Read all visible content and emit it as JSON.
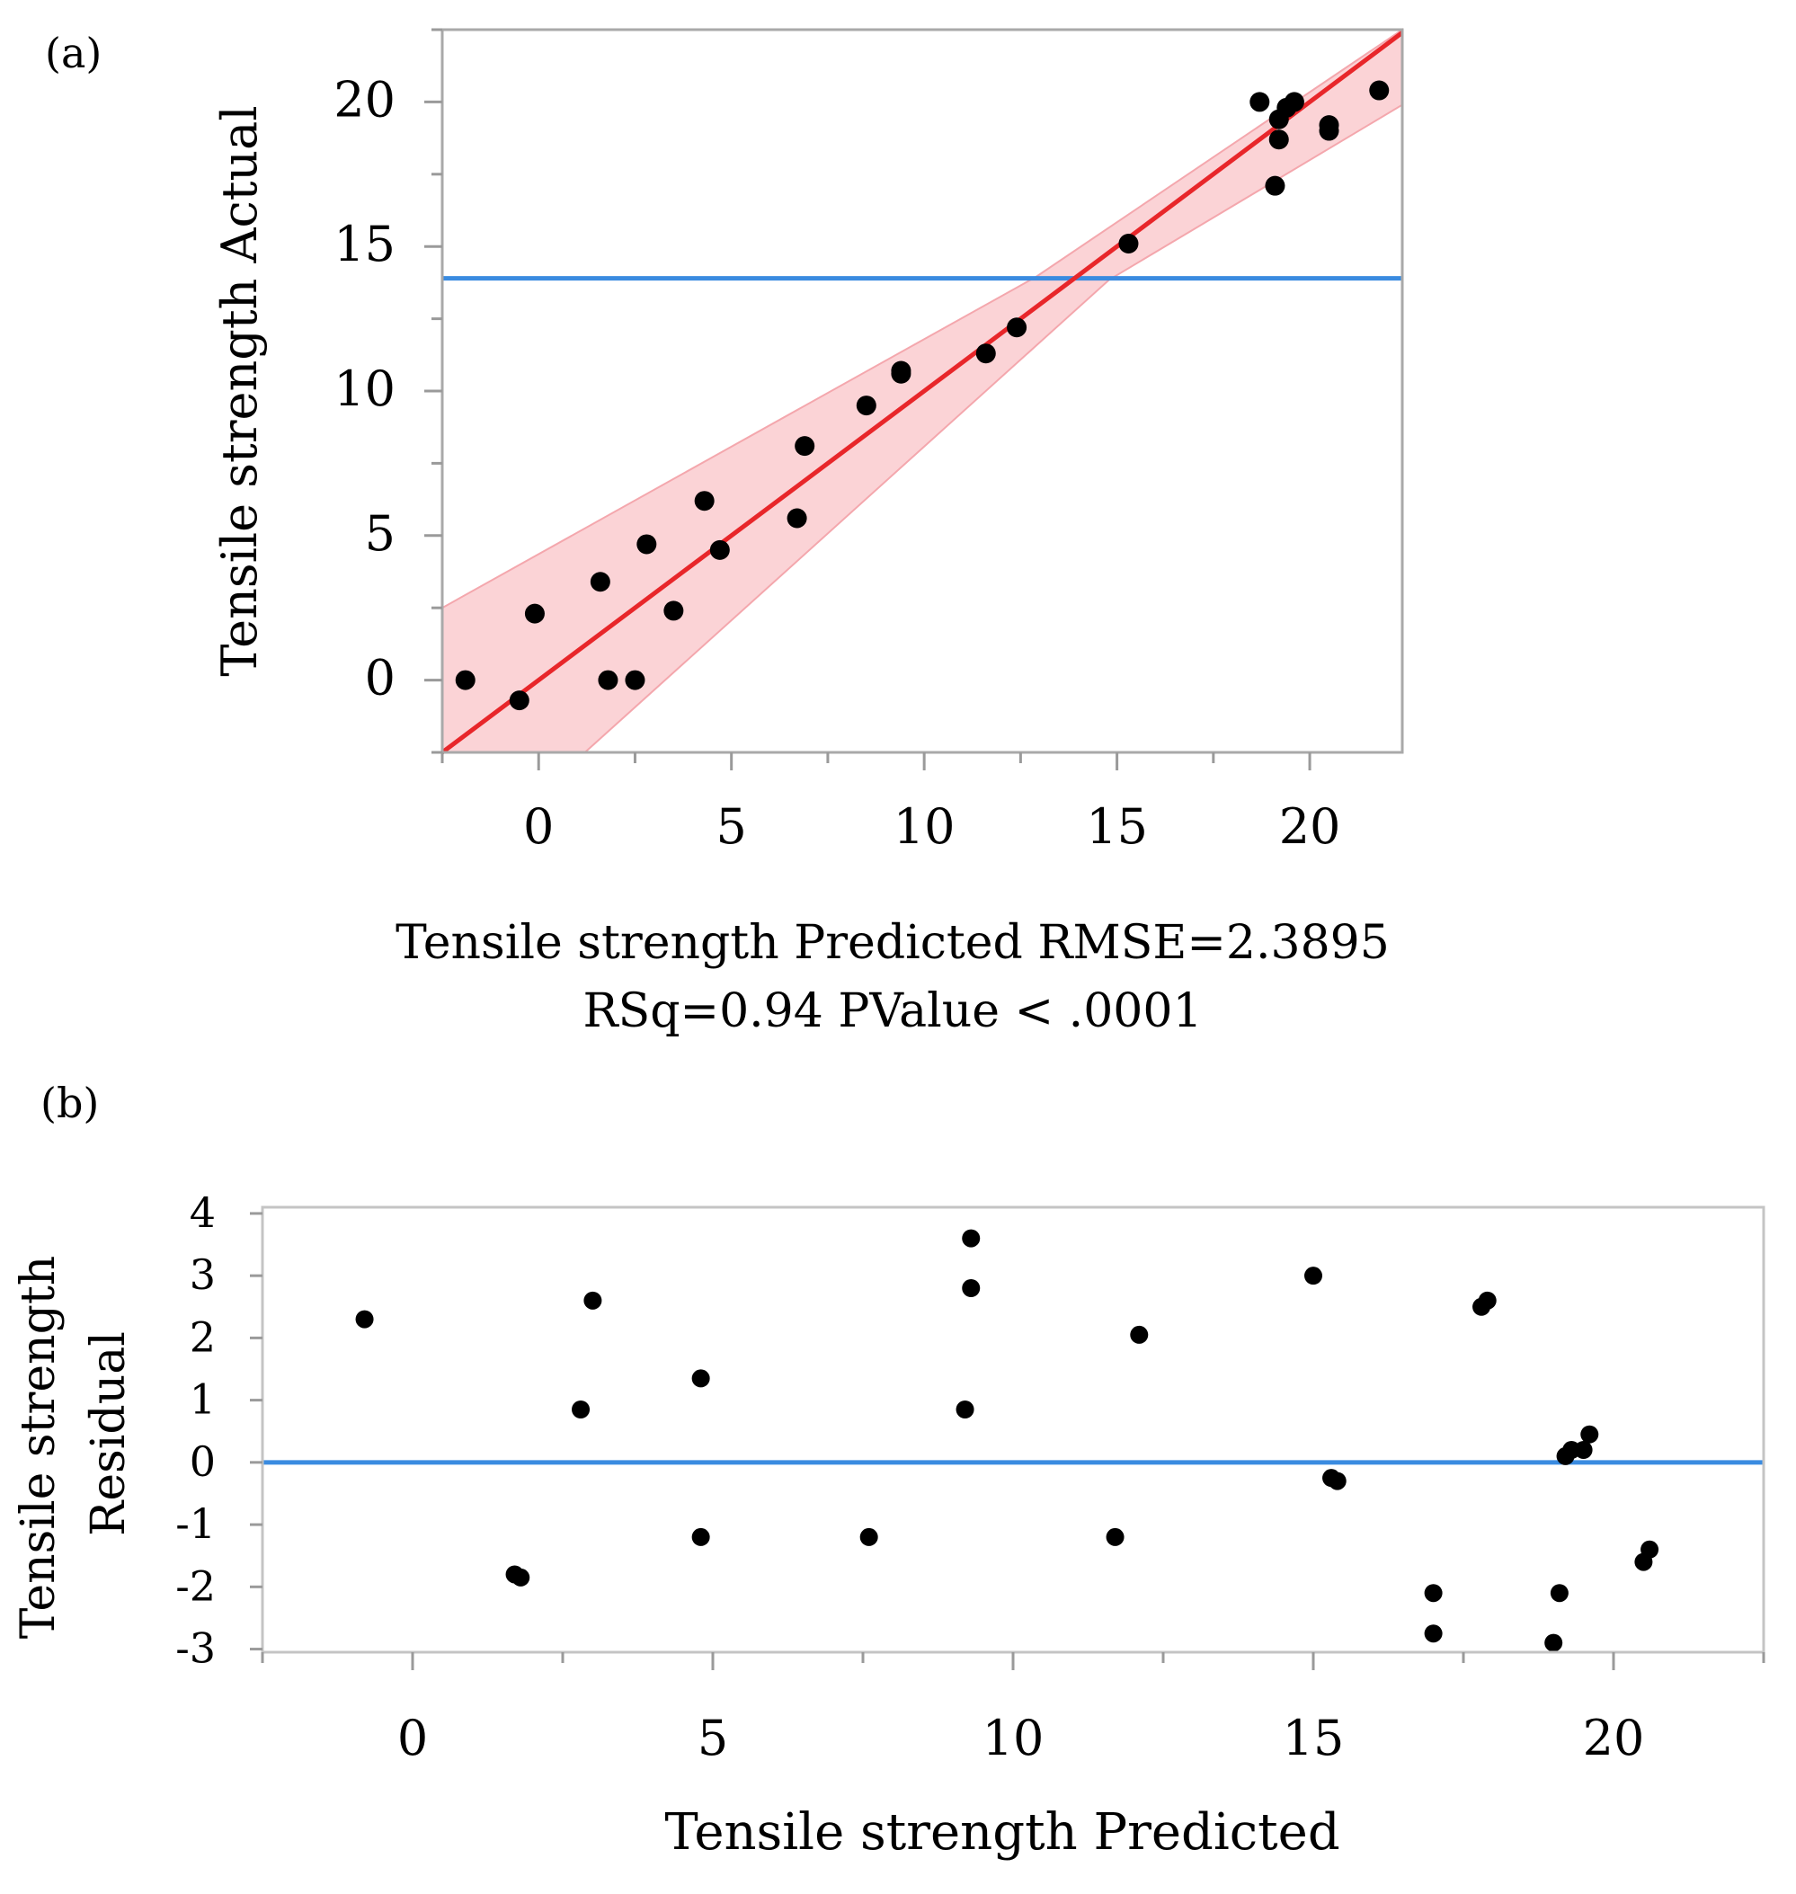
{
  "chart_data": [
    {
      "panel_label": "(a)",
      "type": "scatter",
      "xlabel": "Tensile strength Predicted RMSE=2.3895",
      "xlabel_line2": "RSq=0.94 PValue < .0001",
      "ylabel": "Tensile strength Actual",
      "xlim": [
        -2.5,
        22.4
      ],
      "ylim": [
        -2.5,
        22.5
      ],
      "x_ticks": [
        "0",
        "5",
        "10",
        "15",
        "20"
      ],
      "y_ticks": [
        "0",
        "5",
        "10",
        "15",
        "20"
      ],
      "mean_line": 13.9,
      "fit_line": [
        [
          -2.5,
          -2.5
        ],
        [
          22.4,
          22.4
        ]
      ],
      "confidence_band": {
        "upper": [
          [
            -2.5,
            2.5
          ],
          [
            12.9,
            13.95
          ],
          [
            22.4,
            22.5
          ]
        ],
        "lower": [
          [
            22.4,
            19.9
          ],
          [
            14.8,
            13.85
          ],
          [
            1.2,
            -2.5
          ],
          [
            -2.5,
            -2.5
          ]
        ]
      },
      "colors": {
        "fit": "#e8262a",
        "band": "#fbd3d6",
        "mean": "#3a8be0",
        "points": "#000000",
        "axis": "#9a9a9a"
      },
      "points": [
        [
          -1.9,
          0.0
        ],
        [
          -0.5,
          -0.7
        ],
        [
          -0.1,
          2.3
        ],
        [
          1.6,
          3.4
        ],
        [
          1.8,
          0.0
        ],
        [
          2.5,
          0.0
        ],
        [
          2.8,
          4.7
        ],
        [
          3.5,
          2.4
        ],
        [
          4.3,
          6.2
        ],
        [
          4.7,
          4.5
        ],
        [
          6.7,
          5.6
        ],
        [
          6.9,
          8.1
        ],
        [
          8.5,
          9.5
        ],
        [
          9.4,
          10.7
        ],
        [
          9.4,
          10.6
        ],
        [
          11.6,
          11.3
        ],
        [
          12.4,
          12.2
        ],
        [
          15.3,
          15.1
        ],
        [
          18.7,
          20.0
        ],
        [
          19.1,
          17.1
        ],
        [
          19.2,
          18.7
        ],
        [
          19.2,
          19.4
        ],
        [
          19.4,
          19.8
        ],
        [
          19.6,
          20.0
        ],
        [
          20.5,
          19.0
        ],
        [
          20.5,
          19.2
        ],
        [
          21.8,
          20.4
        ]
      ]
    },
    {
      "panel_label": "(b)",
      "type": "scatter",
      "xlabel": "Tensile strength Predicted",
      "ylabel": "Tensile strength",
      "ylabel_line2": "Residual",
      "xlim": [
        -2.5,
        22.5
      ],
      "ylim": [
        -3.05,
        4.1
      ],
      "x_ticks": [
        "0",
        "5",
        "10",
        "15",
        "20"
      ],
      "y_ticks": [
        "-3",
        "-2",
        "-1",
        "0",
        "1",
        "2",
        "3",
        "4"
      ],
      "zero_line": 0,
      "colors": {
        "zero": "#3a8be0",
        "points": "#000000",
        "axis": "#9a9a9a"
      },
      "points": [
        [
          -0.8,
          2.3
        ],
        [
          1.7,
          -1.8
        ],
        [
          1.8,
          -1.85
        ],
        [
          2.8,
          0.85
        ],
        [
          3.0,
          2.6
        ],
        [
          4.8,
          1.35
        ],
        [
          4.8,
          -1.2
        ],
        [
          7.6,
          -1.2
        ],
        [
          9.2,
          0.85
        ],
        [
          9.3,
          3.6
        ],
        [
          9.3,
          2.8
        ],
        [
          11.7,
          -1.2
        ],
        [
          12.1,
          2.05
        ],
        [
          15.0,
          3.0
        ],
        [
          15.3,
          -0.25
        ],
        [
          15.4,
          -0.3
        ],
        [
          17.0,
          -2.1
        ],
        [
          17.0,
          -2.75
        ],
        [
          17.8,
          2.5
        ],
        [
          17.9,
          2.6
        ],
        [
          19.0,
          -2.9
        ],
        [
          19.1,
          -2.1
        ],
        [
          19.2,
          0.1
        ],
        [
          19.3,
          0.2
        ],
        [
          19.5,
          0.2
        ],
        [
          19.6,
          0.45
        ],
        [
          20.5,
          -1.6
        ],
        [
          20.6,
          -1.4
        ]
      ]
    }
  ]
}
